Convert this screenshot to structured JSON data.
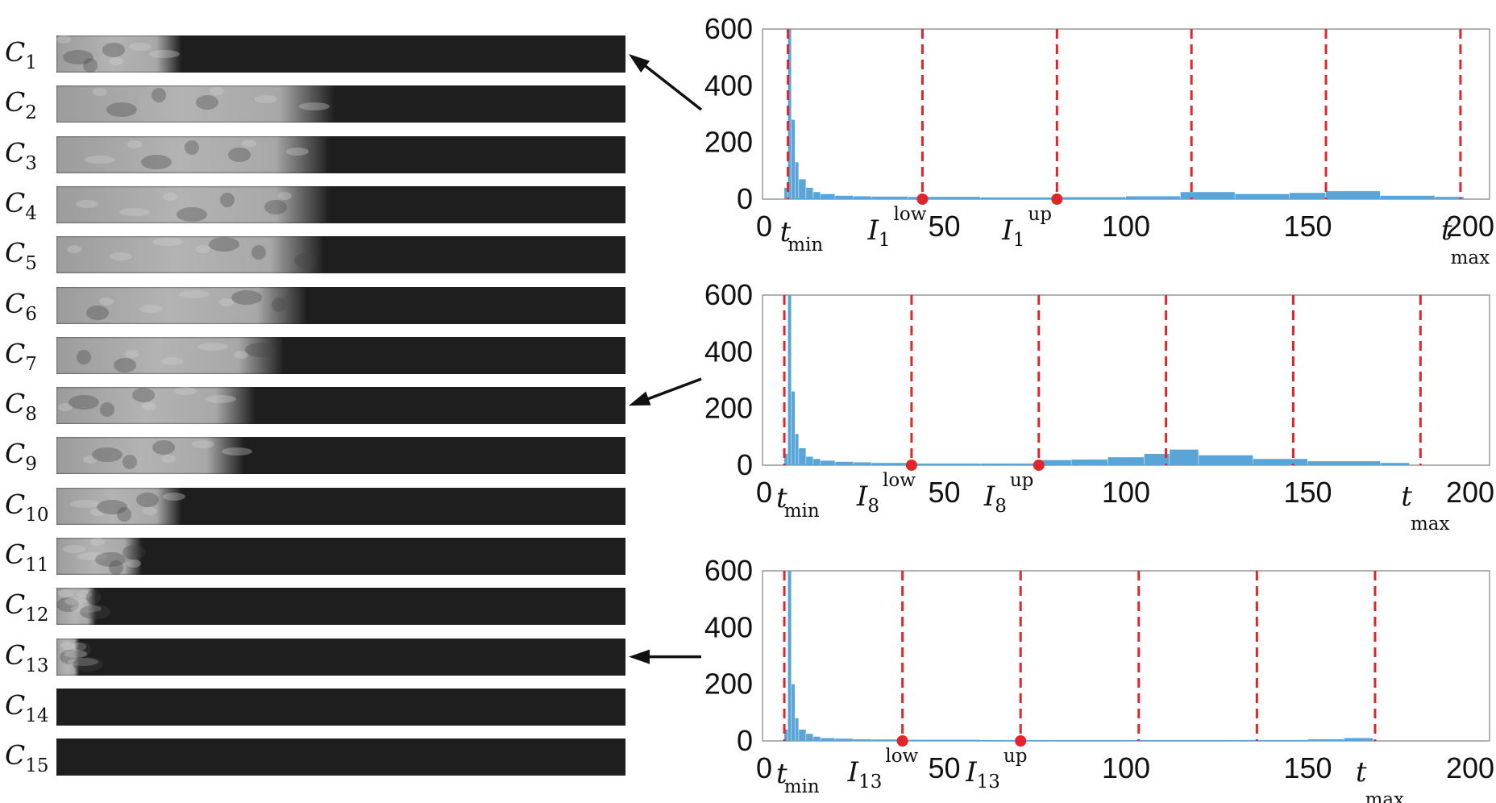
{
  "strip_labels": [
    {
      "letter": "C",
      "index": "1"
    },
    {
      "letter": "C",
      "index": "2"
    },
    {
      "letter": "C",
      "index": "3"
    },
    {
      "letter": "C",
      "index": "4"
    },
    {
      "letter": "C",
      "index": "5"
    },
    {
      "letter": "C",
      "index": "6"
    },
    {
      "letter": "C",
      "index": "7"
    },
    {
      "letter": "C",
      "index": "8"
    },
    {
      "letter": "C",
      "index": "9"
    },
    {
      "letter": "C",
      "index": "10"
    },
    {
      "letter": "C",
      "index": "11"
    },
    {
      "letter": "C",
      "index": "12"
    },
    {
      "letter": "C",
      "index": "13"
    },
    {
      "letter": "C",
      "index": "14"
    },
    {
      "letter": "C",
      "index": "15"
    }
  ],
  "strip_bright_fraction": [
    0.22,
    0.49,
    0.48,
    0.48,
    0.47,
    0.44,
    0.4,
    0.35,
    0.33,
    0.22,
    0.15,
    0.07,
    0.04,
    0.0,
    0.0
  ],
  "colors": {
    "bars": "#5aa5d8",
    "dividers": "#e0262b",
    "markers": "#e0262b",
    "axis": "#999999",
    "arrows": "#111111"
  },
  "chart_data": [
    {
      "type": "bar",
      "points_to_strip": "1",
      "xlim": [
        0,
        200
      ],
      "ylim": [
        0,
        600
      ],
      "xticks": [
        "0",
        "50",
        "100",
        "150",
        "200"
      ],
      "yticks": [
        "0",
        "200",
        "400",
        "600"
      ],
      "grid": false,
      "bins": [
        6,
        7,
        8,
        9,
        10,
        12,
        14,
        16,
        20,
        25,
        30,
        40,
        60,
        80,
        100,
        115,
        130,
        145,
        155,
        170,
        185
      ],
      "counts": [
        40,
        600,
        280,
        130,
        70,
        40,
        25,
        18,
        12,
        10,
        9,
        8,
        6,
        7,
        10,
        25,
        18,
        22,
        28,
        12,
        8
      ],
      "dividers": [
        7,
        44,
        81,
        118,
        155,
        192
      ],
      "markers": [
        {
          "x": 44,
          "name": "I",
          "index": "1",
          "sup": "low"
        },
        {
          "x": 81,
          "name": "I",
          "index": "1",
          "sup": "up"
        }
      ],
      "t_min": {
        "letter": "t",
        "sub": "min"
      },
      "t_max": {
        "letter": "t",
        "sub": "max"
      }
    },
    {
      "type": "bar",
      "points_to_strip": "8",
      "xlim": [
        0,
        200
      ],
      "ylim": [
        0,
        600
      ],
      "xticks": [
        "0",
        "50",
        "100",
        "150",
        "200"
      ],
      "yticks": [
        "0",
        "200",
        "400",
        "600"
      ],
      "grid": false,
      "bins": [
        6,
        7,
        8,
        9,
        10,
        12,
        14,
        16,
        20,
        25,
        30,
        40,
        60,
        75,
        85,
        95,
        105,
        112,
        120,
        135,
        150,
        170
      ],
      "counts": [
        40,
        600,
        260,
        110,
        60,
        30,
        22,
        16,
        12,
        10,
        8,
        6,
        6,
        18,
        20,
        28,
        40,
        55,
        35,
        22,
        14,
        8
      ],
      "dividers": [
        6,
        41,
        76,
        111,
        146,
        181
      ],
      "markers": [
        {
          "x": 41,
          "name": "I",
          "index": "8",
          "sup": "low"
        },
        {
          "x": 76,
          "name": "I",
          "index": "8",
          "sup": "up"
        }
      ],
      "t_min": {
        "letter": "t",
        "sub": "min"
      },
      "t_max": {
        "letter": "t",
        "sub": "max"
      }
    },
    {
      "type": "bar",
      "points_to_strip": "13",
      "xlim": [
        0,
        200
      ],
      "ylim": [
        0,
        600
      ],
      "xticks": [
        "0",
        "50",
        "100",
        "150",
        "200"
      ],
      "yticks": [
        "0",
        "200",
        "400",
        "600"
      ],
      "grid": false,
      "bins": [
        6,
        7,
        8,
        9,
        10,
        12,
        14,
        16,
        20,
        25,
        30,
        40,
        60,
        80,
        100,
        130,
        150,
        160
      ],
      "counts": [
        40,
        600,
        200,
        80,
        40,
        25,
        15,
        10,
        8,
        6,
        5,
        4,
        3,
        3,
        3,
        3,
        6,
        10
      ],
      "dividers": [
        6,
        38.5,
        71,
        103.5,
        136,
        168.5
      ],
      "markers": [
        {
          "x": 38.5,
          "name": "I",
          "index": "13",
          "sup": "low"
        },
        {
          "x": 71,
          "name": "I",
          "index": "13",
          "sup": "up"
        }
      ],
      "t_min": {
        "letter": "t",
        "sub": "min"
      },
      "t_max": {
        "letter": "t",
        "sub": "max"
      }
    }
  ]
}
